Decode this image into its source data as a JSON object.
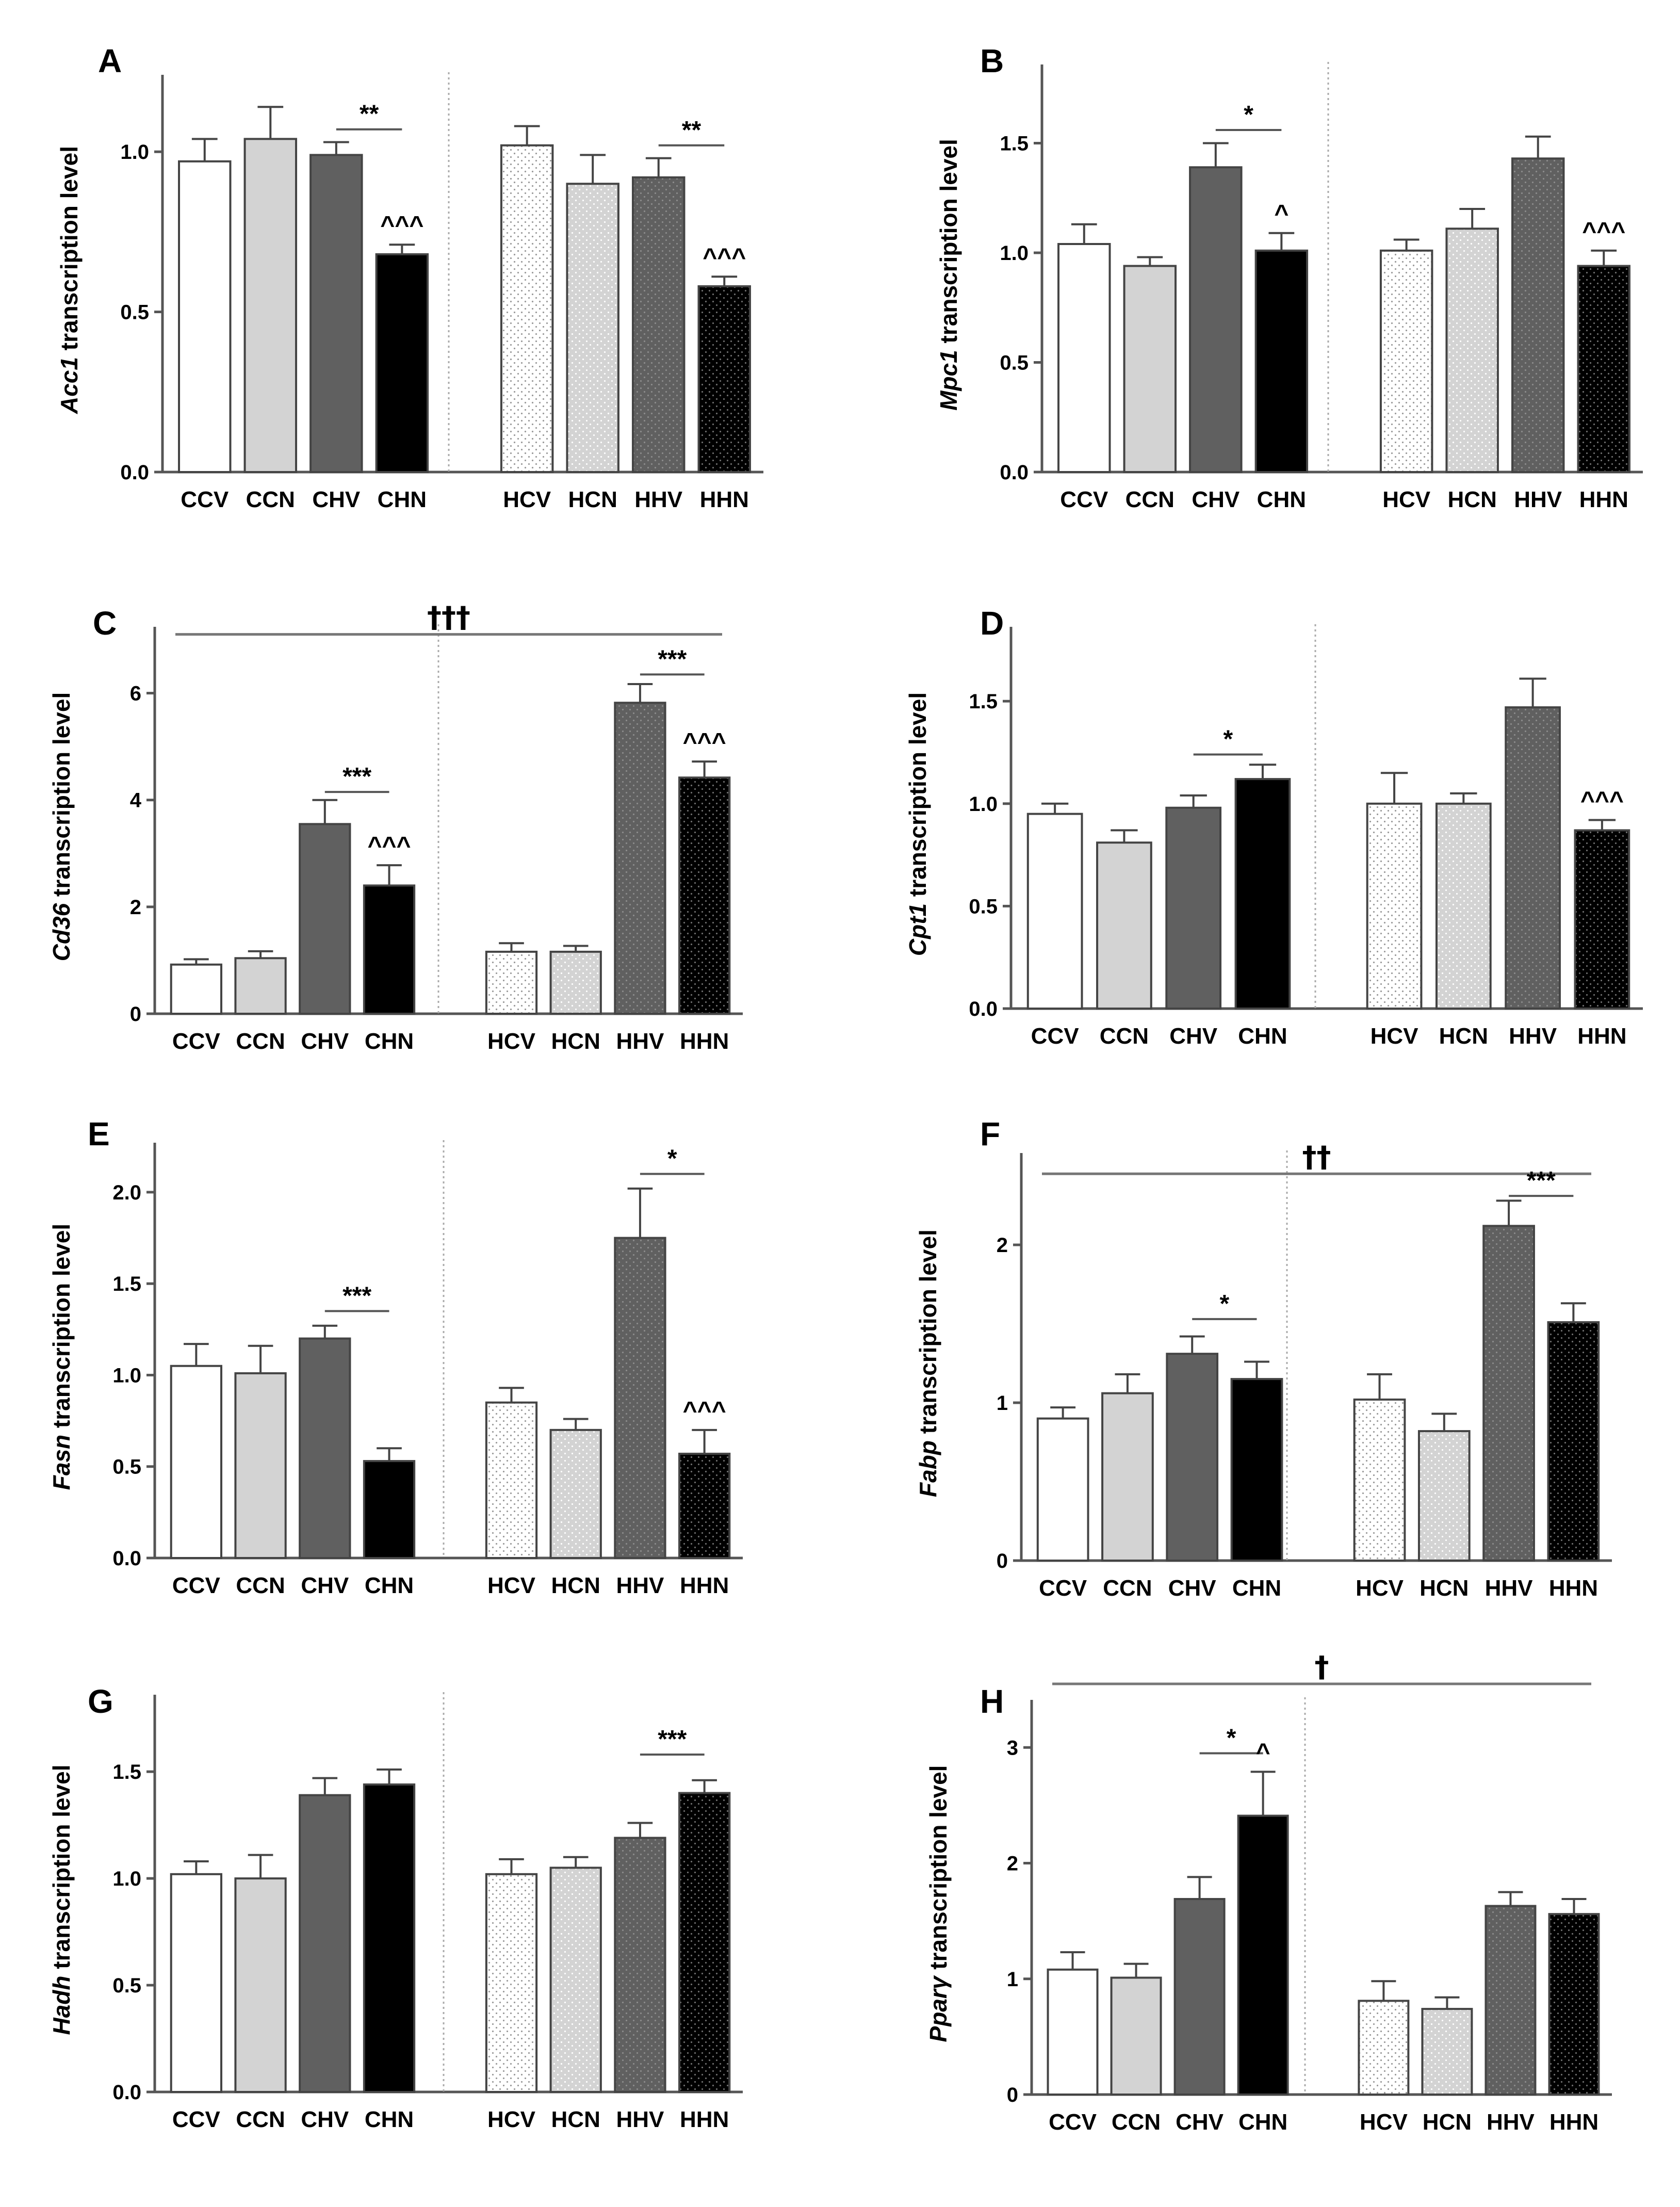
{
  "colors": {
    "CCV": "#ffffff",
    "CCN": "#d3d3d3",
    "CHV": "#606060",
    "CHN": "#000000",
    "HCV": "#ffffff",
    "HCN": "#d3d3d3",
    "HHV": "#606060",
    "HHN": "#000000",
    "axis": "#555555",
    "divider": "#aaaaaa"
  },
  "chart_data": [
    {
      "type": "bar",
      "panel": "A",
      "gene": "Acc1",
      "ylabel_suffix": "transcription level",
      "categories": [
        "CCV",
        "CCN",
        "CHV",
        "CHN",
        "HCV",
        "HCN",
        "HHV",
        "HHN"
      ],
      "values": [
        0.97,
        1.04,
        0.99,
        0.68,
        1.02,
        0.9,
        0.92,
        0.58
      ],
      "errors": [
        0.07,
        0.1,
        0.04,
        0.03,
        0.06,
        0.09,
        0.06,
        0.03
      ],
      "ylim": [
        0,
        1.2
      ],
      "yticks": [
        {
          "v": 0,
          "label": "0.0"
        },
        {
          "v": 0.5,
          "label": "0.5"
        },
        {
          "v": 1.0,
          "label": "1.0"
        }
      ],
      "brackets": [
        {
          "from": 2,
          "to": 3,
          "value": 1.07,
          "label": "**"
        },
        {
          "from": 6,
          "to": 7,
          "value": 1.02,
          "label": "**"
        }
      ],
      "marks": [
        {
          "bar": 3,
          "label": "^^^"
        },
        {
          "bar": 7,
          "label": "^^^"
        }
      ],
      "global": null
    },
    {
      "type": "bar",
      "panel": "B",
      "gene": "Mpc1",
      "ylabel_suffix": "transcription level",
      "categories": [
        "CCV",
        "CCN",
        "CHV",
        "CHN",
        "HCV",
        "HCN",
        "HHV",
        "HHN"
      ],
      "values": [
        1.04,
        0.94,
        1.39,
        1.01,
        1.01,
        1.11,
        1.43,
        0.94
      ],
      "errors": [
        0.09,
        0.04,
        0.11,
        0.08,
        0.05,
        0.09,
        0.1,
        0.07
      ],
      "ylim": [
        0,
        1.8
      ],
      "yticks": [
        {
          "v": 0,
          "label": "0.0"
        },
        {
          "v": 0.5,
          "label": "0.5"
        },
        {
          "v": 1.0,
          "label": "1.0"
        },
        {
          "v": 1.5,
          "label": "1.5"
        }
      ],
      "brackets": [
        {
          "from": 2,
          "to": 3,
          "value": 1.56,
          "label": "*"
        }
      ],
      "marks": [
        {
          "bar": 3,
          "label": "^"
        },
        {
          "bar": 7,
          "label": "^^^"
        }
      ],
      "global": null
    },
    {
      "type": "bar",
      "panel": "C",
      "gene": "Cd36",
      "ylabel_suffix": "transcription level",
      "categories": [
        "CCV",
        "CCN",
        "CHV",
        "CHN",
        "HCV",
        "HCN",
        "HHV",
        "HHN"
      ],
      "values": [
        0.92,
        1.04,
        3.55,
        2.4,
        1.16,
        1.16,
        5.82,
        4.42
      ],
      "errors": [
        0.1,
        0.13,
        0.45,
        0.38,
        0.16,
        0.11,
        0.35,
        0.3
      ],
      "ylim": [
        0,
        7
      ],
      "yticks": [
        {
          "v": 0,
          "label": "0"
        },
        {
          "v": 2,
          "label": "2"
        },
        {
          "v": 4,
          "label": "4"
        },
        {
          "v": 6,
          "label": "6"
        }
      ],
      "brackets": [
        {
          "from": 2,
          "to": 3,
          "value": 4.15,
          "label": "***"
        },
        {
          "from": 6,
          "to": 7,
          "value": 6.35,
          "label": "***"
        }
      ],
      "marks": [
        {
          "bar": 3,
          "label": "^^^"
        },
        {
          "bar": 7,
          "label": "^^^"
        }
      ],
      "global": {
        "value": 7.1,
        "label": "†††"
      }
    },
    {
      "type": "bar",
      "panel": "D",
      "gene": "Cpt1",
      "ylabel_suffix": "transcription level",
      "categories": [
        "CCV",
        "CCN",
        "CHV",
        "CHN",
        "HCV",
        "HCN",
        "HHV",
        "HHN"
      ],
      "values": [
        0.95,
        0.81,
        0.98,
        1.12,
        1.0,
        1.0,
        1.47,
        0.87
      ],
      "errors": [
        0.05,
        0.06,
        0.06,
        0.07,
        0.15,
        0.05,
        0.14,
        0.05
      ],
      "ylim": [
        0,
        1.8
      ],
      "yticks": [
        {
          "v": 0,
          "label": "0.0"
        },
        {
          "v": 0.5,
          "label": "0.5"
        },
        {
          "v": 1.0,
          "label": "1.0"
        },
        {
          "v": 1.5,
          "label": "1.5"
        }
      ],
      "brackets": [
        {
          "from": 2,
          "to": 3,
          "value": 1.24,
          "label": "*"
        }
      ],
      "marks": [
        {
          "bar": 7,
          "label": "^^^"
        }
      ],
      "global": null
    },
    {
      "type": "bar",
      "panel": "E",
      "gene": "Fasn",
      "ylabel_suffix": "transcription level",
      "categories": [
        "CCV",
        "CCN",
        "CHV",
        "CHN",
        "HCV",
        "HCN",
        "HHV",
        "HHN"
      ],
      "values": [
        1.05,
        1.01,
        1.2,
        0.53,
        0.85,
        0.7,
        1.75,
        0.57
      ],
      "errors": [
        0.12,
        0.15,
        0.07,
        0.07,
        0.08,
        0.06,
        0.27,
        0.13
      ],
      "ylim": [
        0,
        2.2
      ],
      "yticks": [
        {
          "v": 0,
          "label": "0.0"
        },
        {
          "v": 0.5,
          "label": "0.5"
        },
        {
          "v": 1.0,
          "label": "1.0"
        },
        {
          "v": 1.5,
          "label": "1.5"
        },
        {
          "v": 2.0,
          "label": "2.0"
        }
      ],
      "brackets": [
        {
          "from": 2,
          "to": 3,
          "value": 1.35,
          "label": "***"
        },
        {
          "from": 6,
          "to": 7,
          "value": 2.1,
          "label": "*"
        }
      ],
      "marks": [
        {
          "bar": 7,
          "label": "^^^"
        }
      ],
      "global": null
    },
    {
      "type": "bar",
      "panel": "F",
      "gene": "Fabp",
      "ylabel_suffix": "transcription level",
      "categories": [
        "CCV",
        "CCN",
        "CHV",
        "CHN",
        "HCV",
        "HCN",
        "HHV",
        "HHN"
      ],
      "values": [
        0.9,
        1.06,
        1.31,
        1.15,
        1.02,
        0.82,
        2.12,
        1.51
      ],
      "errors": [
        0.07,
        0.12,
        0.11,
        0.11,
        0.16,
        0.11,
        0.16,
        0.12
      ],
      "ylim": [
        0,
        2.5
      ],
      "yticks": [
        {
          "v": 0,
          "label": "0"
        },
        {
          "v": 1,
          "label": "1"
        },
        {
          "v": 2,
          "label": "2"
        }
      ],
      "brackets": [
        {
          "from": 2,
          "to": 3,
          "value": 1.53,
          "label": "*"
        },
        {
          "from": 6,
          "to": 7,
          "value": 2.31,
          "label": "***"
        }
      ],
      "marks": [],
      "global": {
        "value": 2.45,
        "label": "††"
      }
    },
    {
      "type": "bar",
      "panel": "G",
      "gene": "Hadh",
      "ylabel_suffix": "transcription level",
      "categories": [
        "CCV",
        "CCN",
        "CHV",
        "CHN",
        "HCV",
        "HCN",
        "HHV",
        "HHN"
      ],
      "values": [
        1.02,
        1.0,
        1.39,
        1.44,
        1.02,
        1.05,
        1.19,
        1.4
      ],
      "errors": [
        0.06,
        0.11,
        0.08,
        0.07,
        0.07,
        0.05,
        0.07,
        0.06
      ],
      "ylim": [
        0,
        1.8
      ],
      "yticks": [
        {
          "v": 0,
          "label": "0.0"
        },
        {
          "v": 0.5,
          "label": "0.5"
        },
        {
          "v": 1.0,
          "label": "1.0"
        },
        {
          "v": 1.5,
          "label": "1.5"
        }
      ],
      "brackets": [
        {
          "from": 6,
          "to": 7,
          "value": 1.58,
          "label": "***"
        }
      ],
      "marks": [],
      "global": null
    },
    {
      "type": "bar",
      "panel": "H",
      "gene": "Pparγ",
      "ylabel_suffix": "transcription level",
      "categories": [
        "CCV",
        "CCN",
        "CHV",
        "CHN",
        "HCV",
        "HCN",
        "HHV",
        "HHN"
      ],
      "values": [
        1.08,
        1.01,
        1.69,
        2.41,
        0.81,
        0.74,
        1.63,
        1.56
      ],
      "errors": [
        0.15,
        0.12,
        0.19,
        0.38,
        0.17,
        0.1,
        0.12,
        0.13
      ],
      "ylim": [
        0,
        3.3
      ],
      "yticks": [
        {
          "v": 0,
          "label": "0"
        },
        {
          "v": 1,
          "label": "1"
        },
        {
          "v": 2,
          "label": "2"
        },
        {
          "v": 3,
          "label": "3"
        }
      ],
      "brackets": [
        {
          "from": 2,
          "to": 3,
          "value": 2.95,
          "label": "*"
        }
      ],
      "marks": [
        {
          "bar": 3,
          "label": "^"
        }
      ],
      "global": {
        "value": 3.55,
        "label": "†"
      }
    }
  ]
}
